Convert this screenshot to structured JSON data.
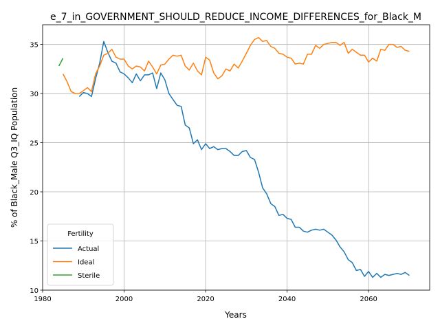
{
  "chart_data": {
    "type": "line",
    "title": "e_7_in_GOVERNMENT_SHOULD_REDUCE_INCOME_DIFFERENCES_for_Black_M",
    "xlabel": "Years",
    "ylabel": "% of Black_Male Q3_IQ Population",
    "xlim": [
      1980,
      2075
    ],
    "ylim": [
      10,
      37
    ],
    "x_ticks": [
      1980,
      2000,
      2020,
      2040,
      2060
    ],
    "y_ticks": [
      10,
      15,
      20,
      25,
      30,
      35
    ],
    "grid": true,
    "legend": {
      "title": "Fertility",
      "placement": "lower-left"
    },
    "series": [
      {
        "name": "Actual",
        "color": "#1f77b4",
        "x": [
          1989,
          1990,
          1991,
          1992,
          1993,
          1994,
          1995,
          1996,
          1997,
          1998,
          1999,
          2000,
          2001,
          2002,
          2003,
          2004,
          2005,
          2006,
          2007,
          2008,
          2009,
          2010,
          2011,
          2012,
          2013,
          2014,
          2015,
          2016,
          2017,
          2018,
          2019,
          2020,
          2021,
          2022,
          2023,
          2024,
          2025,
          2026,
          2027,
          2028,
          2029,
          2030,
          2031,
          2032,
          2033,
          2034,
          2035,
          2036,
          2037,
          2038,
          2039,
          2040,
          2041,
          2042,
          2043,
          2044,
          2045,
          2046,
          2047,
          2048,
          2049,
          2050,
          2051,
          2052,
          2053,
          2054,
          2055,
          2056,
          2057,
          2058,
          2059,
          2060,
          2061,
          2062,
          2063,
          2064,
          2065,
          2066,
          2067,
          2068,
          2069,
          2070
        ],
        "y": [
          29.7,
          30.1,
          30.0,
          29.7,
          31.5,
          33.1,
          35.3,
          34.2,
          33.3,
          33.1,
          32.2,
          32.0,
          31.6,
          31.1,
          32.0,
          31.3,
          31.9,
          31.9,
          32.1,
          30.5,
          32.1,
          31.4,
          30.0,
          29.4,
          28.8,
          28.7,
          26.8,
          26.5,
          24.9,
          25.3,
          24.3,
          24.9,
          24.4,
          24.6,
          24.3,
          24.4,
          24.4,
          24.1,
          23.7,
          23.7,
          24.1,
          24.2,
          23.5,
          23.3,
          22.0,
          20.4,
          19.8,
          18.8,
          18.5,
          17.6,
          17.7,
          17.3,
          17.2,
          16.4,
          16.4,
          16.0,
          15.9,
          16.1,
          16.2,
          16.1,
          16.2,
          15.9,
          15.6,
          15.1,
          14.4,
          13.9,
          13.1,
          12.8,
          12.0,
          12.1,
          11.4,
          11.9,
          11.3,
          11.7,
          11.3,
          11.6,
          11.5,
          11.6,
          11.7,
          11.6,
          11.8,
          11.5
        ]
      },
      {
        "name": "Ideal",
        "color": "#ff7f0e",
        "x": [
          1985,
          1986,
          1987,
          1988,
          1989,
          1990,
          1991,
          1992,
          1993,
          1994,
          1995,
          1996,
          1997,
          1998,
          1999,
          2000,
          2001,
          2002,
          2003,
          2004,
          2005,
          2006,
          2007,
          2008,
          2009,
          2010,
          2011,
          2012,
          2013,
          2014,
          2015,
          2016,
          2017,
          2018,
          2019,
          2020,
          2021,
          2022,
          2023,
          2024,
          2025,
          2026,
          2027,
          2028,
          2029,
          2030,
          2031,
          2032,
          2033,
          2034,
          2035,
          2036,
          2037,
          2038,
          2039,
          2040,
          2041,
          2042,
          2043,
          2044,
          2045,
          2046,
          2047,
          2048,
          2049,
          2050,
          2051,
          2052,
          2053,
          2054,
          2055,
          2056,
          2057,
          2058,
          2059,
          2060,
          2061,
          2062,
          2063,
          2064,
          2065,
          2066,
          2067,
          2068,
          2069,
          2070
        ],
        "y": [
          32.0,
          31.2,
          30.2,
          30.0,
          30.0,
          30.3,
          30.6,
          30.2,
          32.0,
          32.8,
          33.9,
          34.1,
          34.5,
          33.7,
          33.5,
          33.5,
          32.8,
          32.5,
          32.8,
          32.7,
          32.3,
          33.3,
          32.7,
          32.0,
          32.9,
          33.0,
          33.5,
          33.9,
          33.8,
          33.9,
          32.8,
          32.4,
          33.1,
          32.3,
          31.9,
          33.7,
          33.4,
          32.1,
          31.5,
          31.8,
          32.5,
          32.3,
          33.0,
          32.6,
          33.3,
          34.1,
          34.9,
          35.5,
          35.7,
          35.3,
          35.4,
          34.8,
          34.6,
          34.1,
          34.0,
          33.7,
          33.6,
          33.0,
          33.1,
          33.0,
          34.0,
          34.0,
          34.9,
          34.6,
          35.0,
          35.1,
          35.2,
          35.2,
          34.9,
          35.2,
          34.1,
          34.5,
          34.2,
          33.9,
          33.9,
          33.2,
          33.6,
          33.3,
          34.5,
          34.4,
          35.0,
          35.0,
          34.7,
          34.8,
          34.4,
          34.3
        ]
      },
      {
        "name": "Sterile",
        "color": "#2ca02c",
        "x": [
          1984,
          1985
        ],
        "y": [
          32.8,
          33.6
        ]
      }
    ]
  }
}
